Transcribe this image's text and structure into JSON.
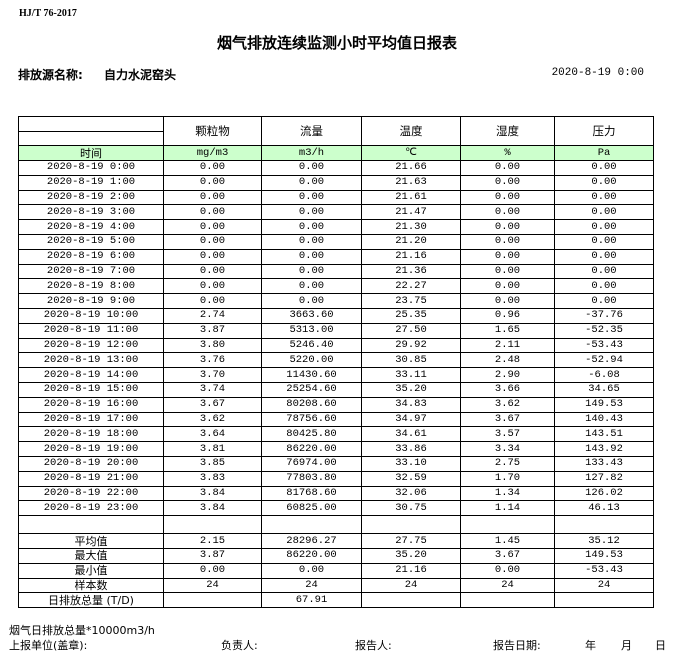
{
  "header": {
    "standard": "HJ/T  76-2017",
    "title": "烟气排放连续监测小时平均值日报表",
    "source_label": "排放源名称:",
    "source_value": "自力水泥窑头",
    "report_date": "2020-8-19 0:00"
  },
  "table": {
    "columns": [
      "颗粒物",
      "流量",
      "温度",
      "湿度",
      "压力"
    ],
    "time_label": "时间",
    "units": [
      "mg/m3",
      "m3/h",
      "℃",
      "%",
      "Pa"
    ],
    "rows": [
      [
        "2020-8-19 0:00",
        "0.00",
        "0.00",
        "21.66",
        "0.00",
        "0.00"
      ],
      [
        "2020-8-19 1:00",
        "0.00",
        "0.00",
        "21.63",
        "0.00",
        "0.00"
      ],
      [
        "2020-8-19 2:00",
        "0.00",
        "0.00",
        "21.61",
        "0.00",
        "0.00"
      ],
      [
        "2020-8-19 3:00",
        "0.00",
        "0.00",
        "21.47",
        "0.00",
        "0.00"
      ],
      [
        "2020-8-19 4:00",
        "0.00",
        "0.00",
        "21.30",
        "0.00",
        "0.00"
      ],
      [
        "2020-8-19 5:00",
        "0.00",
        "0.00",
        "21.20",
        "0.00",
        "0.00"
      ],
      [
        "2020-8-19 6:00",
        "0.00",
        "0.00",
        "21.16",
        "0.00",
        "0.00"
      ],
      [
        "2020-8-19 7:00",
        "0.00",
        "0.00",
        "21.36",
        "0.00",
        "0.00"
      ],
      [
        "2020-8-19 8:00",
        "0.00",
        "0.00",
        "22.27",
        "0.00",
        "0.00"
      ],
      [
        "2020-8-19 9:00",
        "0.00",
        "0.00",
        "23.75",
        "0.00",
        "0.00"
      ],
      [
        "2020-8-19 10:00",
        "2.74",
        "3663.60",
        "25.35",
        "0.96",
        "-37.76"
      ],
      [
        "2020-8-19 11:00",
        "3.87",
        "5313.00",
        "27.50",
        "1.65",
        "-52.35"
      ],
      [
        "2020-8-19 12:00",
        "3.80",
        "5246.40",
        "29.92",
        "2.11",
        "-53.43"
      ],
      [
        "2020-8-19 13:00",
        "3.76",
        "5220.00",
        "30.85",
        "2.48",
        "-52.94"
      ],
      [
        "2020-8-19 14:00",
        "3.70",
        "11430.60",
        "33.11",
        "2.90",
        "-6.08"
      ],
      [
        "2020-8-19 15:00",
        "3.74",
        "25254.60",
        "35.20",
        "3.66",
        "34.65"
      ],
      [
        "2020-8-19 16:00",
        "3.67",
        "80208.60",
        "34.83",
        "3.62",
        "149.53"
      ],
      [
        "2020-8-19 17:00",
        "3.62",
        "78756.60",
        "34.97",
        "3.67",
        "140.43"
      ],
      [
        "2020-8-19 18:00",
        "3.64",
        "80425.80",
        "34.61",
        "3.57",
        "143.51"
      ],
      [
        "2020-8-19 19:00",
        "3.81",
        "86220.00",
        "33.86",
        "3.34",
        "143.92"
      ],
      [
        "2020-8-19 20:00",
        "3.85",
        "76974.00",
        "33.10",
        "2.75",
        "133.43"
      ],
      [
        "2020-8-19 21:00",
        "3.83",
        "77803.80",
        "32.59",
        "1.70",
        "127.82"
      ],
      [
        "2020-8-19 22:00",
        "3.84",
        "81768.60",
        "32.06",
        "1.34",
        "126.02"
      ],
      [
        "2020-8-19 23:00",
        "3.84",
        "60825.00",
        "30.75",
        "1.14",
        "46.13"
      ]
    ],
    "stats": [
      [
        "平均值",
        "2.15",
        "28296.27",
        "27.75",
        "1.45",
        "35.12"
      ],
      [
        "最大值",
        "3.87",
        "86220.00",
        "35.20",
        "3.67",
        "149.53"
      ],
      [
        "最小值",
        "0.00",
        "0.00",
        "21.16",
        "0.00",
        "-53.43"
      ],
      [
        "样本数",
        "24",
        "24",
        "24",
        "24",
        "24"
      ],
      [
        "日排放总量 (T/D)",
        "",
        "67.91",
        "",
        "",
        ""
      ]
    ]
  },
  "footer": {
    "note": "烟气日排放总量*10000m3/h",
    "unit_label": "上报单位(盖章):",
    "responsible_label": "负责人:",
    "reporter_label": "报告人:",
    "report_date_label": "报告日期:",
    "year": "年",
    "month": "月",
    "day": "日"
  }
}
